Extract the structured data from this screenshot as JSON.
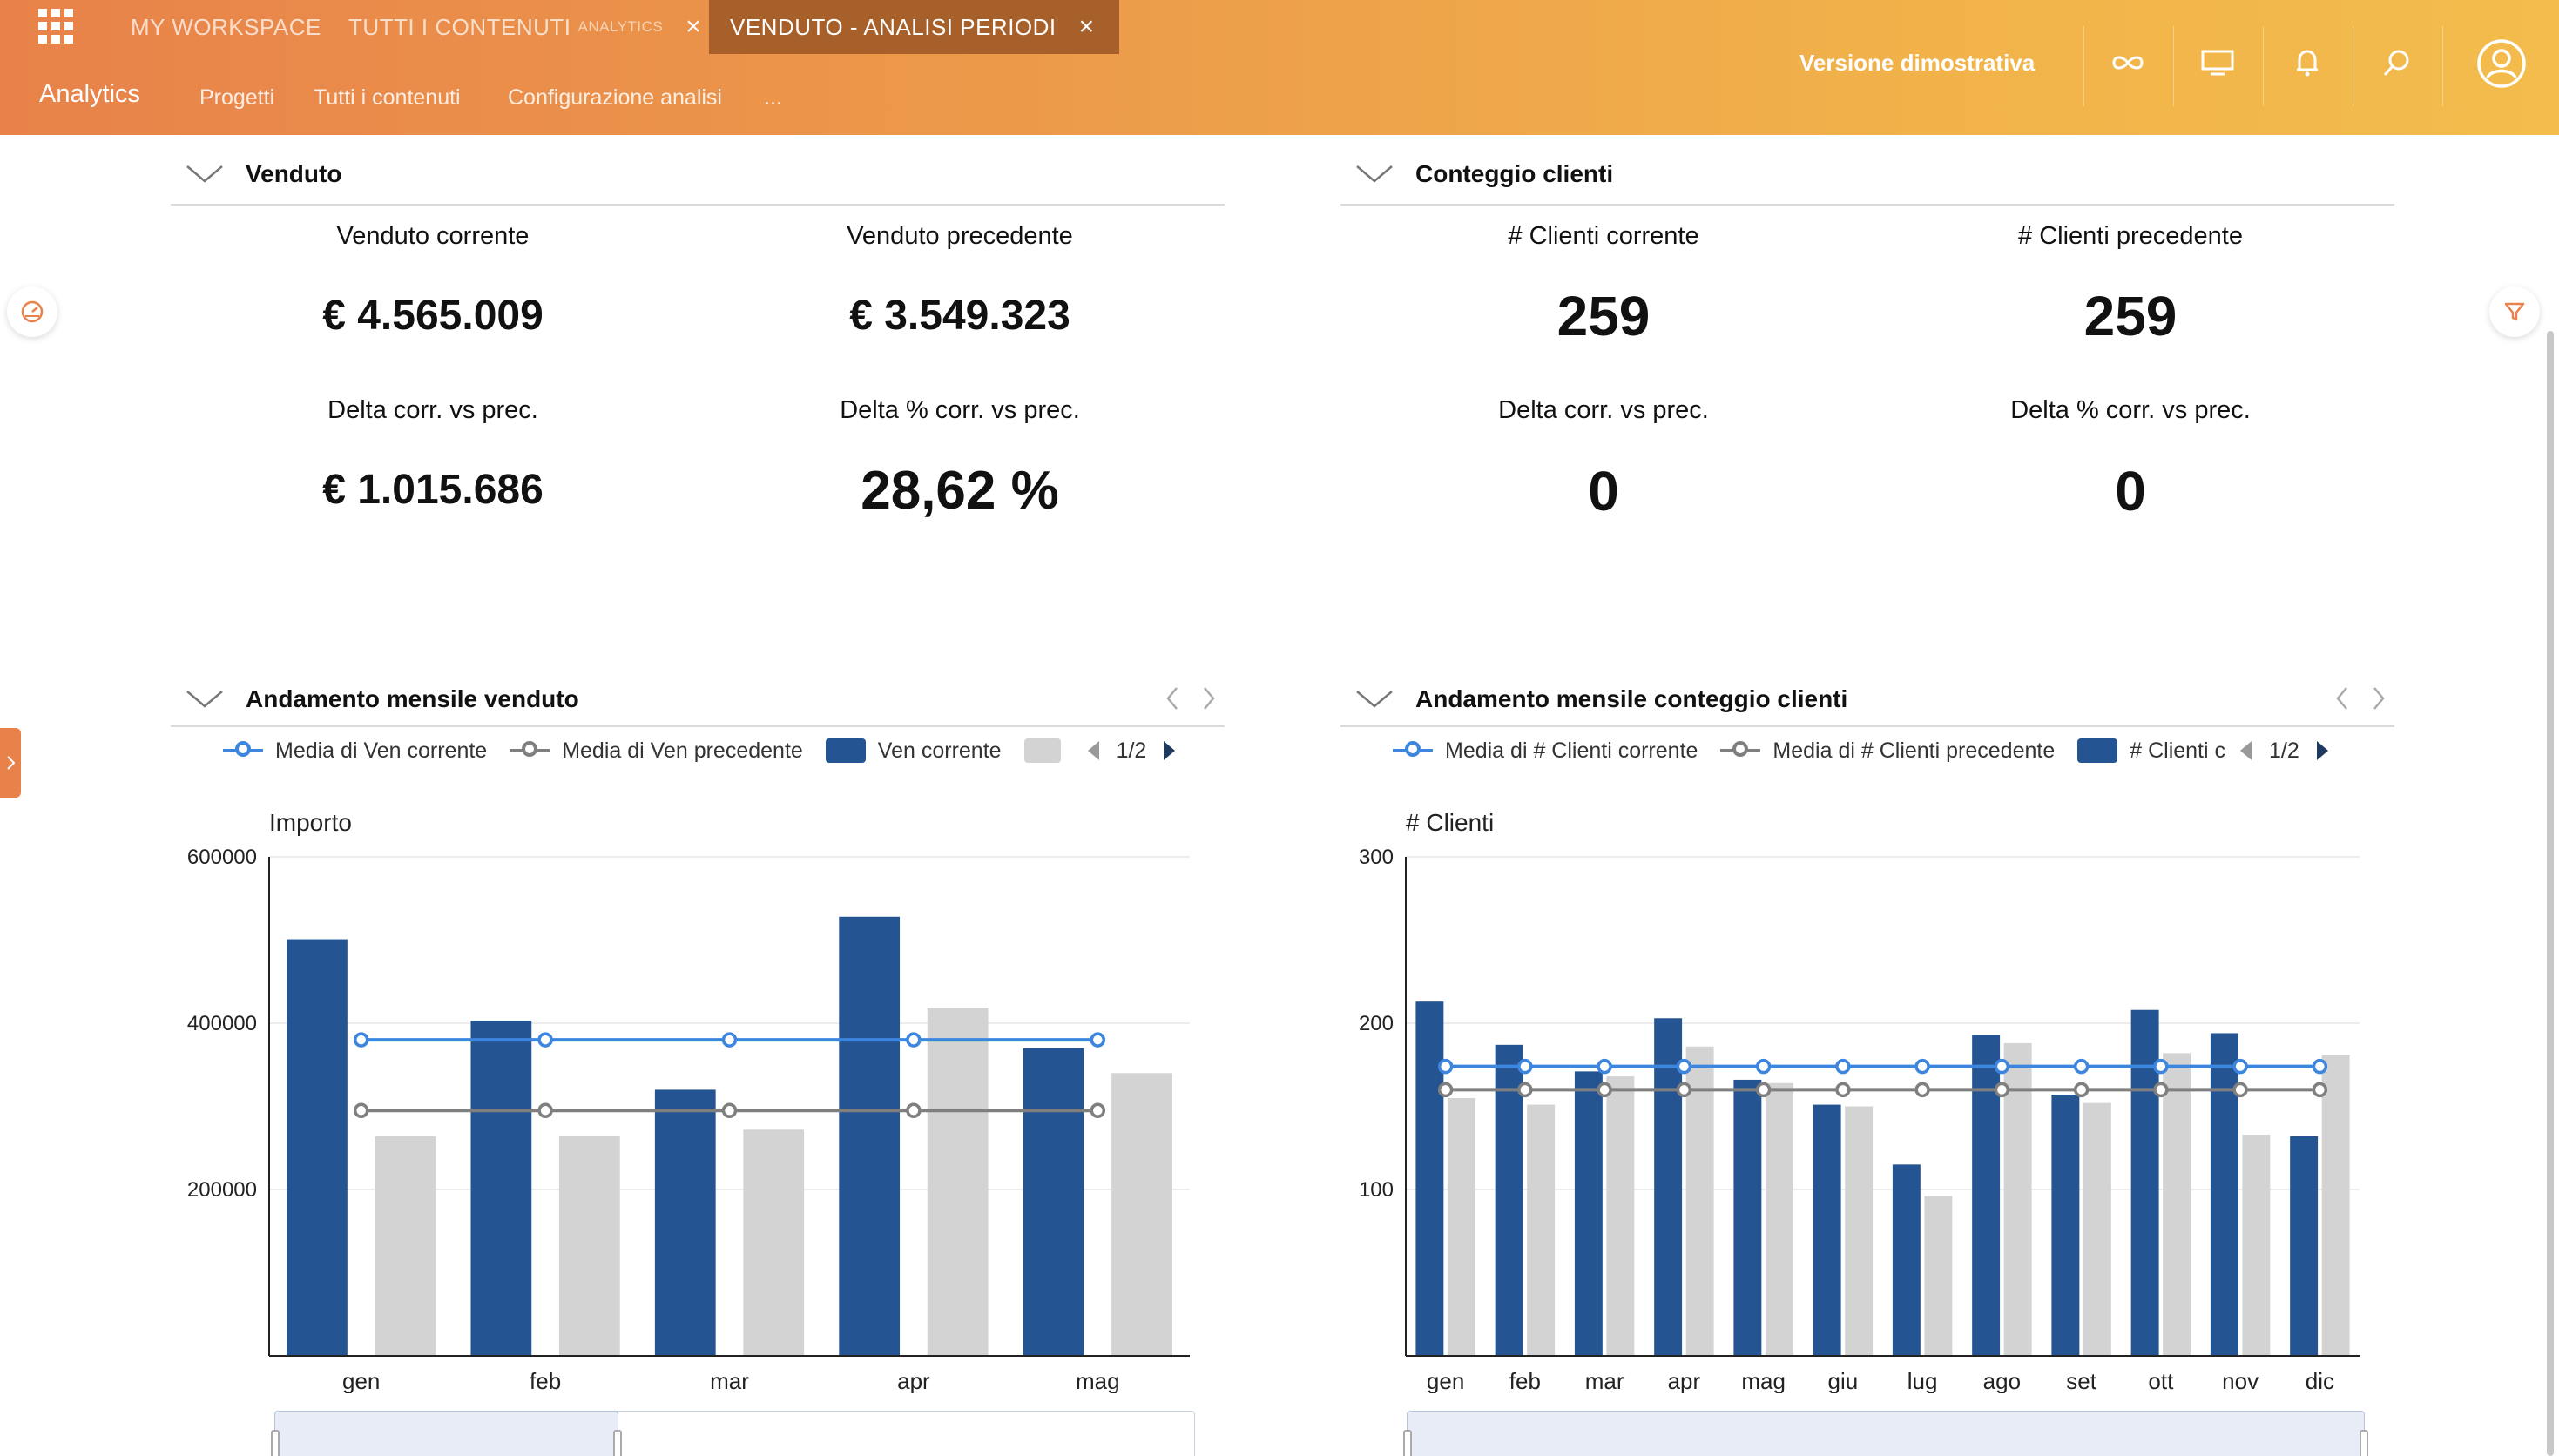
{
  "header": {
    "tabs": [
      {
        "label": "MY WORKSPACE",
        "sub": ""
      },
      {
        "label": "TUTTI I CONTENUTI",
        "sub": "ANALYTICS"
      },
      {
        "label": "VENDUTO - ANALISI PERIODI",
        "sub": ""
      }
    ],
    "close_glyph": "×",
    "app_title": "Analytics",
    "subnav": [
      "Progetti",
      "Tutti i contenuti",
      "Configurazione analisi",
      "..."
    ],
    "demo_label": "Versione dimostrativa",
    "icons": [
      "infinity-icon",
      "monitor-icon",
      "bell-icon",
      "search-icon",
      "user-icon"
    ]
  },
  "colors": {
    "accent_orange": "#e8824a",
    "bar_current": "#245592",
    "bar_previous": "#d3d3d3",
    "line_current": "#3d86df",
    "line_previous": "#7f7f7f"
  },
  "venduto": {
    "title": "Venduto",
    "kpis": [
      {
        "label": "Venduto corrente",
        "value": "€ 4.565.009"
      },
      {
        "label": "Venduto precedente",
        "value": "€ 3.549.323"
      },
      {
        "label": "Delta corr. vs prec.",
        "value": "€ 1.015.686"
      },
      {
        "label": "Delta % corr. vs prec.",
        "value": "28,62 %"
      }
    ]
  },
  "clienti": {
    "title": "Conteggio clienti",
    "kpis": [
      {
        "label": "# Clienti corrente",
        "value": "259"
      },
      {
        "label": "# Clienti precedente",
        "value": "259"
      },
      {
        "label": "Delta corr. vs prec.",
        "value": "0"
      },
      {
        "label": "Delta % corr. vs prec.",
        "value": "0"
      }
    ]
  },
  "andamento_venduto": {
    "title": "Andamento mensile venduto",
    "legend": [
      "Media di Ven corrente",
      "Media di Ven precedente",
      "Ven corrente",
      ""
    ],
    "pager": "1/2"
  },
  "andamento_clienti": {
    "title": "Andamento mensile conteggio clienti",
    "legend": [
      "Media di # Clienti corrente",
      "Media di # Clienti precedente",
      "# Clienti c"
    ],
    "pager": "1/2"
  },
  "chart_data": [
    {
      "type": "bar",
      "ylabel": "Importo",
      "ylim": [
        0,
        600000
      ],
      "yticks": [
        200000,
        400000,
        600000
      ],
      "categories": [
        "gen",
        "feb",
        "mar",
        "apr",
        "mag"
      ],
      "series": [
        {
          "name": "Ven corrente",
          "values": [
            501000,
            403000,
            320000,
            528000,
            370000
          ]
        },
        {
          "values": [
            264000,
            265000,
            272000,
            418000,
            340000
          ]
        },
        {
          "name": "Media di Ven corrente",
          "kind": "line",
          "values": [
            380000,
            380000,
            380000,
            380000,
            380000
          ]
        },
        {
          "name": "Media di Ven precedente",
          "kind": "line",
          "values": [
            295000,
            295000,
            295000,
            295000,
            295000
          ]
        }
      ],
      "grid": true
    },
    {
      "type": "bar",
      "ylabel": "# Clienti",
      "ylim": [
        0,
        300
      ],
      "yticks": [
        100,
        200,
        300
      ],
      "categories": [
        "gen",
        "feb",
        "mar",
        "apr",
        "mag",
        "giu",
        "lug",
        "ago",
        "set",
        "ott",
        "nov",
        "dic"
      ],
      "series": [
        {
          "name": "# Clienti c",
          "values": [
            213,
            187,
            171,
            203,
            166,
            151,
            115,
            193,
            157,
            208,
            194,
            132
          ]
        },
        {
          "values": [
            155,
            151,
            168,
            186,
            164,
            150,
            96,
            188,
            152,
            182,
            133,
            181
          ]
        },
        {
          "name": "Media di # Clienti corrente",
          "kind": "line",
          "values": [
            174,
            174,
            174,
            174,
            174,
            174,
            174,
            174,
            174,
            174,
            174,
            174
          ]
        },
        {
          "name": "Media di # Clienti precedente",
          "kind": "line",
          "values": [
            160,
            160,
            160,
            160,
            160,
            160,
            160,
            160,
            160,
            160,
            160,
            160
          ]
        }
      ],
      "grid": true
    }
  ]
}
